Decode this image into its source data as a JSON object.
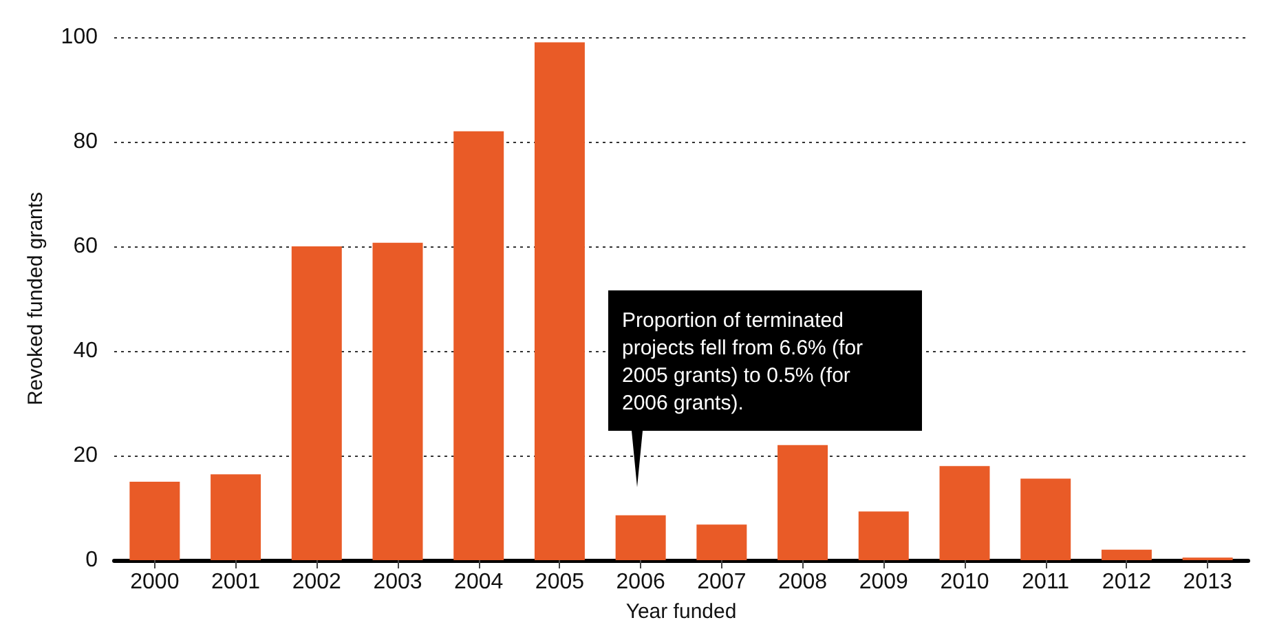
{
  "chart_data": {
    "type": "bar",
    "xlabel": "Year funded",
    "ylabel": "Revoked funded grants",
    "categories": [
      "2000",
      "2001",
      "2002",
      "2003",
      "2004",
      "2005",
      "2006",
      "2007",
      "2008",
      "2009",
      "2010",
      "2011",
      "2012",
      "2013"
    ],
    "values": [
      15,
      16.4,
      60,
      60.7,
      82,
      99,
      8.6,
      6.8,
      22,
      9.3,
      18,
      15.6,
      2,
      0.5
    ],
    "color": "#e95b27",
    "ylim": [
      0,
      100
    ],
    "yticks": [
      0,
      20,
      40,
      60,
      80,
      100
    ],
    "grid": "y",
    "annotations": [
      "Proportion of terminated projects fell from 6.6% (for 2005 grants) to 0.5% (for 2006 grants)."
    ]
  }
}
